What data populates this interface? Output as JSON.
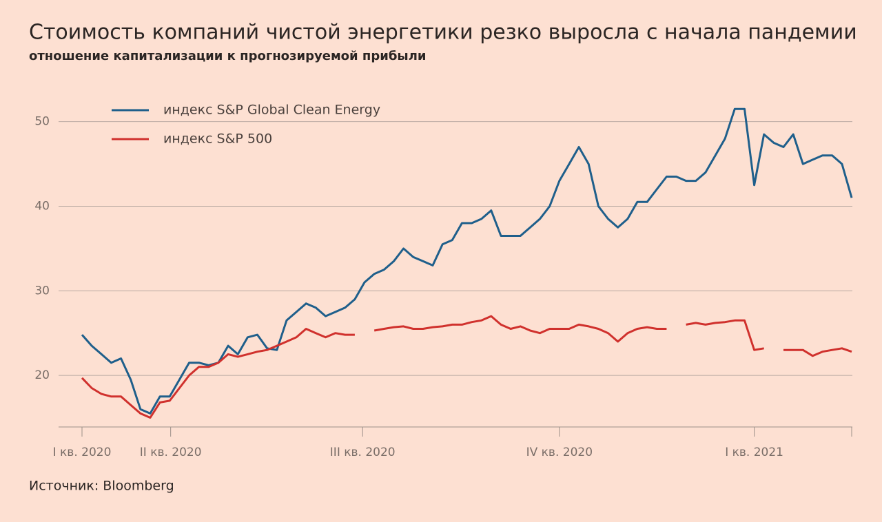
{
  "chart_data": {
    "type": "line",
    "title": "Стоимость компаний чистой энергетики резко выросла с начала пандемии",
    "subtitle": "отношение капитализации к прогнозируемой прибыли",
    "source": "Источник: Bloomberg",
    "x": [
      0,
      1,
      2,
      3,
      4,
      5,
      6,
      7,
      8,
      9,
      10,
      11,
      12,
      13,
      14,
      15,
      16,
      17,
      18,
      19,
      20,
      21,
      22,
      23,
      24,
      25,
      26,
      27,
      28,
      29,
      30,
      31,
      32,
      33,
      34,
      35,
      36,
      37,
      38,
      39,
      40,
      41,
      42,
      43,
      44,
      45,
      46,
      47,
      48,
      49,
      50,
      51,
      52,
      53,
      54,
      55,
      56,
      57,
      58,
      59,
      60,
      61,
      62,
      63,
      64,
      65,
      66,
      67,
      68,
      69,
      70,
      71,
      72,
      73,
      74,
      75,
      76,
      77,
      78,
      79
    ],
    "xlim": [
      0,
      79
    ],
    "xticks": [
      {
        "value": 0,
        "label": "I кв. 2020"
      },
      {
        "value": 9.1,
        "label": "II кв. 2020"
      },
      {
        "value": 28.8,
        "label": "III кв. 2020"
      },
      {
        "value": 49,
        "label": "IV кв. 2020"
      },
      {
        "value": 69,
        "label": "I кв. 2021"
      }
    ],
    "ylim": [
      13.9,
      53.8
    ],
    "yticks": [
      20,
      30,
      40,
      50
    ],
    "grid": true,
    "series": [
      {
        "name": "индекс S&P Global Clean Energy",
        "color": "#1f5f8b",
        "values": [
          24.8,
          23.5,
          22.5,
          21.5,
          22.0,
          19.5,
          16.0,
          15.5,
          17.5,
          17.5,
          19.5,
          21.5,
          21.5,
          21.2,
          21.5,
          23.5,
          22.5,
          24.5,
          24.8,
          23.2,
          23.0,
          26.5,
          27.5,
          28.5,
          28.0,
          27.0,
          27.5,
          28.0,
          29.0,
          31.0,
          32.0,
          32.5,
          33.5,
          35.0,
          34.0,
          33.5,
          33.0,
          35.5,
          36.0,
          38.0,
          38.0,
          38.5,
          39.5,
          36.5,
          36.5,
          36.5,
          37.5,
          38.5,
          40.0,
          43.0,
          45.0,
          47.0,
          45.0,
          40.0,
          38.5,
          37.5,
          38.5,
          40.5,
          40.5,
          42.0,
          43.5,
          43.5,
          43.0,
          43.0,
          44.0,
          46.0,
          48.0,
          51.5,
          51.5,
          42.5,
          48.5,
          47.5,
          47.0,
          48.5,
          45.0,
          45.5,
          46.0,
          46.0,
          45.0,
          41.0
        ]
      },
      {
        "name": "индекс S&P 500",
        "color": "#d0312d",
        "values": [
          19.7,
          18.5,
          17.8,
          17.5,
          17.5,
          16.5,
          15.5,
          15.0,
          16.8,
          17.0,
          18.5,
          20.0,
          21.0,
          21.0,
          21.5,
          22.5,
          22.2,
          22.5,
          22.8,
          23.0,
          23.5,
          24.0,
          24.5,
          25.5,
          25.0,
          24.5,
          25.0,
          24.8,
          24.8,
          null,
          25.3,
          25.5,
          25.7,
          25.8,
          25.5,
          25.5,
          25.7,
          25.8,
          26.0,
          26.0,
          26.3,
          26.5,
          27.0,
          26.0,
          25.5,
          25.8,
          25.3,
          25.0,
          25.5,
          25.5,
          25.5,
          26.0,
          25.8,
          25.5,
          25.0,
          24.0,
          25.0,
          25.5,
          25.7,
          25.5,
          25.5,
          null,
          26.0,
          26.2,
          26.0,
          26.2,
          26.3,
          26.5,
          26.5,
          23.0,
          23.2,
          null,
          23.0,
          23.0,
          23.0,
          22.3,
          22.8,
          23.0,
          23.2,
          22.8
        ]
      }
    ]
  }
}
